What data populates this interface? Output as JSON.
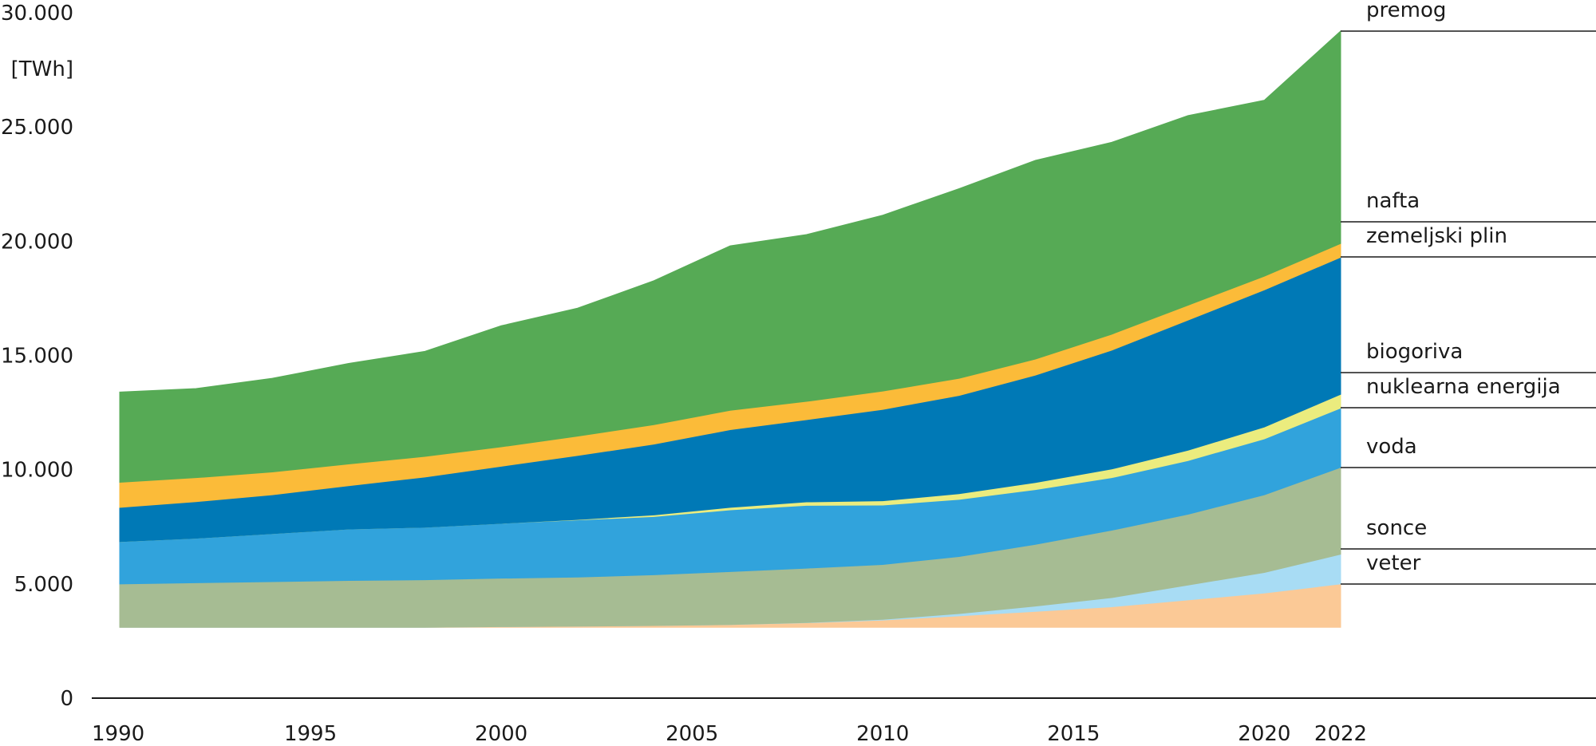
{
  "chart_data": {
    "type": "area",
    "stacked": true,
    "title": "",
    "xlabel": "",
    "ylabel": "[TWh]",
    "ylim": [
      0,
      30000
    ],
    "x_ticks": [
      "1990",
      "1995",
      "2000",
      "2005",
      "2010",
      "2015",
      "2020",
      "2022"
    ],
    "y_ticks": [
      "0",
      "5.000",
      "10.000",
      "15.000",
      "20.000",
      "25.000",
      "30.000"
    ],
    "legend_position": "right",
    "grid": false,
    "x": [
      1990,
      1992,
      1994,
      1996,
      1998,
      2000,
      2002,
      2004,
      2006,
      2008,
      2010,
      2012,
      2014,
      2016,
      2018,
      2020,
      2022
    ],
    "series": [
      {
        "name": "veter",
        "color": "#fbc996",
        "values": [
          0,
          0,
          0,
          0,
          0,
          30,
          50,
          80,
          120,
          200,
          320,
          500,
          700,
          900,
          1200,
          1500,
          1900
        ]
      },
      {
        "name": "sonce",
        "color": "#a8dcf4",
        "values": [
          0,
          0,
          0,
          0,
          0,
          0,
          0,
          0,
          0,
          10,
          30,
          100,
          230,
          400,
          650,
          900,
          1300
        ]
      },
      {
        "name": "voda",
        "color": "#a6bc93",
        "values": [
          1900,
          1950,
          2000,
          2050,
          2080,
          2120,
          2150,
          2220,
          2320,
          2380,
          2400,
          2500,
          2700,
          2950,
          3100,
          3400,
          3800
        ]
      },
      {
        "name": "nuklearna energija",
        "color": "#31a3dc",
        "values": [
          1850,
          1950,
          2100,
          2250,
          2300,
          2400,
          2500,
          2550,
          2700,
          2750,
          2600,
          2500,
          2400,
          2300,
          2350,
          2450,
          2600
        ]
      },
      {
        "name": "biogoriva",
        "color": "#ebec7e",
        "values": [
          0,
          0,
          0,
          0,
          0,
          0,
          20,
          70,
          110,
          150,
          190,
          250,
          310,
          380,
          450,
          520,
          600
        ]
      },
      {
        "name": "zemeljski plin",
        "color": "#0079b6",
        "values": [
          1500,
          1600,
          1700,
          1900,
          2200,
          2500,
          2800,
          3100,
          3400,
          3600,
          4000,
          4300,
          4700,
          5200,
          5700,
          6000,
          6000
        ]
      },
      {
        "name": "nafta",
        "color": "#fbbb39",
        "values": [
          1100,
          1050,
          1000,
          950,
          900,
          850,
          850,
          850,
          850,
          800,
          800,
          750,
          700,
          700,
          650,
          600,
          600
        ]
      },
      {
        "name": "premog",
        "color": "#56aa55",
        "values": [
          3950,
          3900,
          4100,
          4400,
          4600,
          5300,
          5600,
          6300,
          7200,
          7300,
          7700,
          8300,
          8700,
          8400,
          8300,
          7700,
          9300
        ]
      }
    ]
  }
}
